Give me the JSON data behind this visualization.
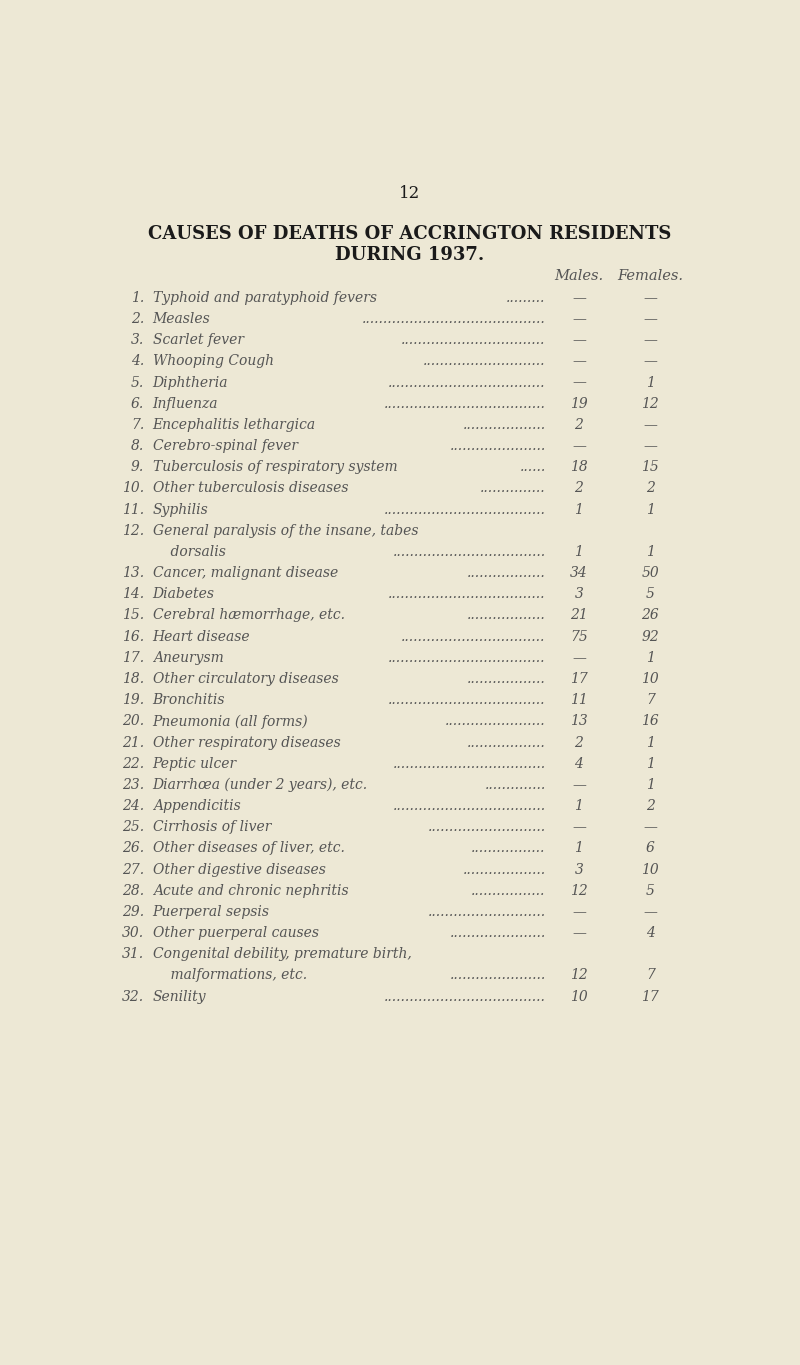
{
  "page_number": "12",
  "title_line1": "CAUSES OF DEATHS OF ACCRINGTON RESIDENTS",
  "title_line2": "DURING 1937.",
  "col_headers": [
    "Males.",
    "Females."
  ],
  "background_color": "#ede8d5",
  "text_color": "#555555",
  "title_color": "#1a1a1a",
  "header_color": "#555555",
  "rows": [
    {
      "num": "1.",
      "label": "Typhoid and paratyphoid fevers",
      "dots": ".........",
      "males": "—",
      "females": "—"
    },
    {
      "num": "2.",
      "label": "Measles",
      "dots": "..........................................",
      "males": "—",
      "females": "—"
    },
    {
      "num": "3.",
      "label": "Scarlet fever",
      "dots": ".................................",
      "males": "—",
      "females": "—"
    },
    {
      "num": "4.",
      "label": "Whooping Cough",
      "dots": "............................",
      "males": "—",
      "females": "—"
    },
    {
      "num": "5.",
      "label": "Diphtheria",
      "dots": "....................................",
      "males": "—",
      "females": "1"
    },
    {
      "num": "6.",
      "label": "Influenza",
      "dots": ".....................................",
      "males": "19",
      "females": "12"
    },
    {
      "num": "7.",
      "label": "Encephalitis lethargica",
      "dots": "...................",
      "males": "2",
      "females": "—"
    },
    {
      "num": "8.",
      "label": "Cerebro-spinal fever",
      "dots": "......................",
      "males": "—",
      "females": "—"
    },
    {
      "num": "9.",
      "label": "Tuberculosis of respiratory system",
      "dots": "......",
      "males": "18",
      "females": "15"
    },
    {
      "num": "10.",
      "label": "Other tuberculosis diseases",
      "dots": "...............",
      "males": "2",
      "females": "2"
    },
    {
      "num": "11.",
      "label": "Syphilis",
      "dots": ".....................................",
      "males": "1",
      "females": "1"
    },
    {
      "num": "12.",
      "label": "General paralysis of the insane, tabes",
      "dots": "",
      "males": "",
      "females": ""
    },
    {
      "num": "",
      "label": "    dorsalis",
      "dots": "...................................",
      "males": "1",
      "females": "1"
    },
    {
      "num": "13.",
      "label": "Cancer, malignant disease",
      "dots": "..................",
      "males": "34",
      "females": "50"
    },
    {
      "num": "14.",
      "label": "Diabetes",
      "dots": "....................................",
      "males": "3",
      "females": "5"
    },
    {
      "num": "15.",
      "label": "Cerebral hæmorrhage, etc.",
      "dots": "..................",
      "males": "21",
      "females": "26"
    },
    {
      "num": "16.",
      "label": "Heart disease",
      "dots": ".................................",
      "males": "75",
      "females": "92"
    },
    {
      "num": "17.",
      "label": "Aneurysm",
      "dots": "....................................",
      "males": "—",
      "females": "1"
    },
    {
      "num": "18.",
      "label": "Other circulatory diseases",
      "dots": "..................",
      "males": "17",
      "females": "10"
    },
    {
      "num": "19.",
      "label": "Bronchitis",
      "dots": "....................................",
      "males": "11",
      "females": "7"
    },
    {
      "num": "20.",
      "label": "Pneumonia (all forms)",
      "dots": ".......................",
      "males": "13",
      "females": "16"
    },
    {
      "num": "21.",
      "label": "Other respiratory diseases",
      "dots": "..................",
      "males": "2",
      "females": "1"
    },
    {
      "num": "22.",
      "label": "Peptic ulcer",
      "dots": "...................................",
      "males": "4",
      "females": "1"
    },
    {
      "num": "23.",
      "label": "Diarrhœa (under 2 years), etc.",
      "dots": "..............",
      "males": "—",
      "females": "1"
    },
    {
      "num": "24.",
      "label": "Appendicitis",
      "dots": "...................................",
      "males": "1",
      "females": "2"
    },
    {
      "num": "25.",
      "label": "Cirrhosis of liver",
      "dots": "...........................",
      "males": "—",
      "females": "—"
    },
    {
      "num": "26.",
      "label": "Other diseases of liver, etc.",
      "dots": ".................",
      "males": "1",
      "females": "6"
    },
    {
      "num": "27.",
      "label": "Other digestive diseases",
      "dots": "...................",
      "males": "3",
      "females": "10"
    },
    {
      "num": "28.",
      "label": "Acute and chronic nephritis",
      "dots": ".................",
      "males": "12",
      "females": "5"
    },
    {
      "num": "29.",
      "label": "Puerperal sepsis",
      "dots": "...........................",
      "males": "—",
      "females": "—"
    },
    {
      "num": "30.",
      "label": "Other puerperal causes",
      "dots": "......................",
      "males": "—",
      "females": "4"
    },
    {
      "num": "31.",
      "label": "Congenital debility, premature birth,",
      "dots": "",
      "males": "",
      "females": ""
    },
    {
      "num": "",
      "label": "    malformations, etc.",
      "dots": "......................",
      "males": "12",
      "females": "7"
    },
    {
      "num": "32.",
      "label": "Senility",
      "dots": ".....................................",
      "males": "10",
      "females": "17"
    }
  ]
}
